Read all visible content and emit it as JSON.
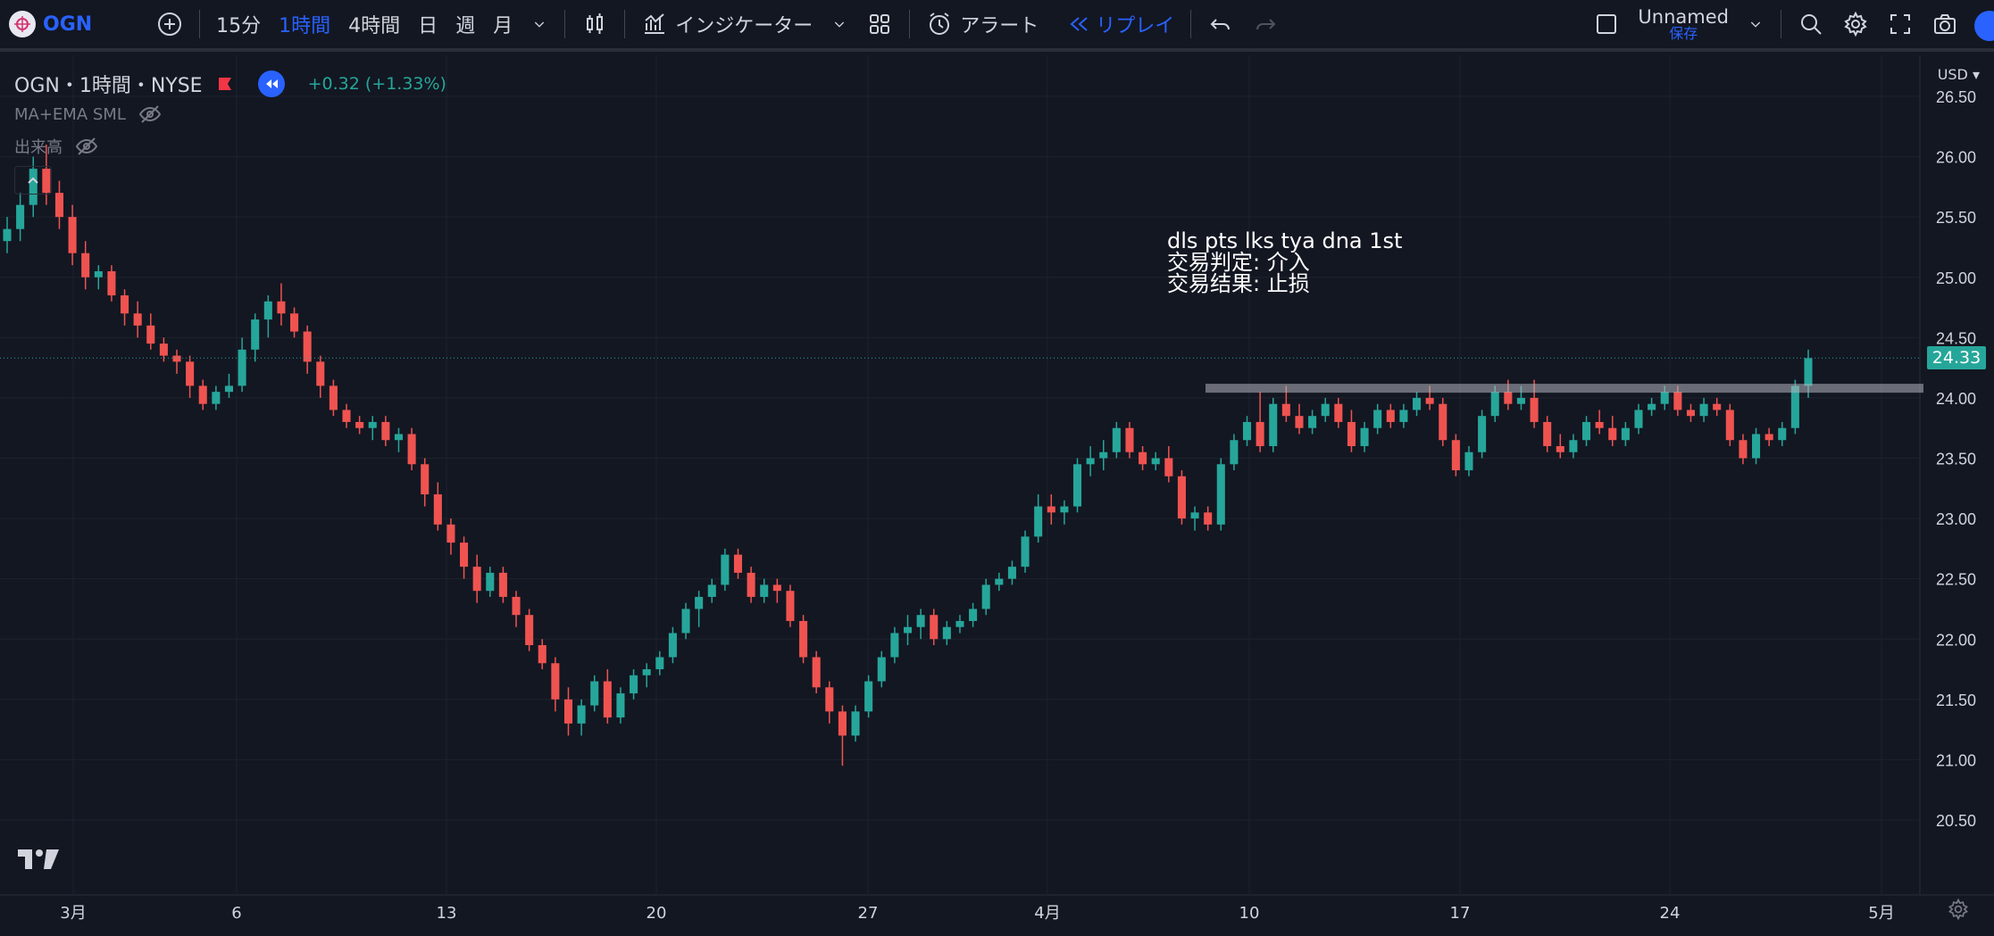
{
  "toolbar": {
    "symbol": "OGN",
    "intervals": [
      "15分",
      "1時間",
      "4時間",
      "日",
      "週",
      "月"
    ],
    "active_interval": "1時間",
    "indicators_label": "インジケーター",
    "alert_label": "アラート",
    "replay_label": "リプレイ",
    "layout_name": "Unnamed",
    "save_label": "保存"
  },
  "legend": {
    "title": "OGN・1時間・NYSE",
    "change": "+0.32 (+1.33%)",
    "indicator1": "MA+EMA SML",
    "indicator2": "出来高"
  },
  "annotation": {
    "line1": "dls pts lks tya dna 1st",
    "line2": "交易判定: 介入",
    "line3": "交易结果: 止损"
  },
  "price_axis": {
    "currency": "USD",
    "current_price": "24.33",
    "ticks": [
      "26.50",
      "26.00",
      "25.50",
      "25.00",
      "24.50",
      "24.00",
      "23.50",
      "23.00",
      "22.50",
      "22.00",
      "21.50",
      "21.00",
      "20.50"
    ]
  },
  "time_axis": {
    "ticks": [
      "3月",
      "6",
      "13",
      "20",
      "27",
      "4月",
      "10",
      "17",
      "24",
      "5月"
    ]
  },
  "colors": {
    "up": "#26a69a",
    "down": "#ef5350",
    "accent": "#2962ff",
    "background": "#131722"
  },
  "chart_data": {
    "type": "candlestick",
    "ylim": [
      20.5,
      26.5
    ],
    "resistance_level": 24.08,
    "ohlc": [
      [
        25.3,
        25.5,
        25.2,
        25.4
      ],
      [
        25.4,
        25.7,
        25.3,
        25.6
      ],
      [
        25.6,
        26.0,
        25.5,
        25.9
      ],
      [
        25.9,
        26.1,
        25.6,
        25.7
      ],
      [
        25.7,
        25.8,
        25.4,
        25.5
      ],
      [
        25.5,
        25.6,
        25.1,
        25.2
      ],
      [
        25.2,
        25.3,
        24.9,
        25.0
      ],
      [
        25.0,
        25.1,
        24.9,
        25.05
      ],
      [
        25.05,
        25.1,
        24.8,
        24.85
      ],
      [
        24.85,
        24.9,
        24.6,
        24.7
      ],
      [
        24.7,
        24.8,
        24.5,
        24.6
      ],
      [
        24.6,
        24.7,
        24.4,
        24.45
      ],
      [
        24.45,
        24.5,
        24.3,
        24.35
      ],
      [
        24.35,
        24.4,
        24.2,
        24.3
      ],
      [
        24.3,
        24.35,
        24.0,
        24.1
      ],
      [
        24.1,
        24.15,
        23.9,
        23.95
      ],
      [
        23.95,
        24.1,
        23.9,
        24.05
      ],
      [
        24.05,
        24.2,
        24.0,
        24.1
      ],
      [
        24.1,
        24.5,
        24.05,
        24.4
      ],
      [
        24.4,
        24.7,
        24.3,
        24.65
      ],
      [
        24.65,
        24.85,
        24.5,
        24.8
      ],
      [
        24.8,
        24.95,
        24.6,
        24.7
      ],
      [
        24.7,
        24.75,
        24.5,
        24.55
      ],
      [
        24.55,
        24.6,
        24.2,
        24.3
      ],
      [
        24.3,
        24.35,
        24.0,
        24.1
      ],
      [
        24.1,
        24.15,
        23.85,
        23.9
      ],
      [
        23.9,
        23.95,
        23.75,
        23.8
      ],
      [
        23.8,
        23.85,
        23.7,
        23.75
      ],
      [
        23.75,
        23.85,
        23.65,
        23.8
      ],
      [
        23.8,
        23.85,
        23.6,
        23.65
      ],
      [
        23.65,
        23.75,
        23.55,
        23.7
      ],
      [
        23.7,
        23.75,
        23.4,
        23.45
      ],
      [
        23.45,
        23.5,
        23.1,
        23.2
      ],
      [
        23.2,
        23.3,
        22.9,
        22.95
      ],
      [
        22.95,
        23.0,
        22.7,
        22.8
      ],
      [
        22.8,
        22.85,
        22.5,
        22.6
      ],
      [
        22.6,
        22.7,
        22.3,
        22.4
      ],
      [
        22.4,
        22.6,
        22.35,
        22.55
      ],
      [
        22.55,
        22.6,
        22.3,
        22.35
      ],
      [
        22.35,
        22.4,
        22.1,
        22.2
      ],
      [
        22.2,
        22.25,
        21.9,
        21.95
      ],
      [
        21.95,
        22.0,
        21.75,
        21.8
      ],
      [
        21.8,
        21.85,
        21.4,
        21.5
      ],
      [
        21.5,
        21.6,
        21.2,
        21.3
      ],
      [
        21.3,
        21.5,
        21.2,
        21.45
      ],
      [
        21.45,
        21.7,
        21.4,
        21.65
      ],
      [
        21.65,
        21.75,
        21.3,
        21.35
      ],
      [
        21.35,
        21.6,
        21.3,
        21.55
      ],
      [
        21.55,
        21.75,
        21.5,
        21.7
      ],
      [
        21.7,
        21.8,
        21.6,
        21.75
      ],
      [
        21.75,
        21.9,
        21.7,
        21.85
      ],
      [
        21.85,
        22.1,
        21.8,
        22.05
      ],
      [
        22.05,
        22.3,
        22.0,
        22.25
      ],
      [
        22.25,
        22.4,
        22.1,
        22.35
      ],
      [
        22.35,
        22.5,
        22.3,
        22.45
      ],
      [
        22.45,
        22.75,
        22.4,
        22.7
      ],
      [
        22.7,
        22.75,
        22.5,
        22.55
      ],
      [
        22.55,
        22.6,
        22.3,
        22.35
      ],
      [
        22.35,
        22.5,
        22.3,
        22.45
      ],
      [
        22.45,
        22.5,
        22.3,
        22.4
      ],
      [
        22.4,
        22.45,
        22.1,
        22.15
      ],
      [
        22.15,
        22.2,
        21.8,
        21.85
      ],
      [
        21.85,
        21.9,
        21.55,
        21.6
      ],
      [
        21.6,
        21.65,
        21.3,
        21.4
      ],
      [
        21.4,
        21.45,
        20.95,
        21.2
      ],
      [
        21.2,
        21.45,
        21.15,
        21.4
      ],
      [
        21.4,
        21.7,
        21.35,
        21.65
      ],
      [
        21.65,
        21.9,
        21.6,
        21.85
      ],
      [
        21.85,
        22.1,
        21.8,
        22.05
      ],
      [
        22.05,
        22.2,
        21.95,
        22.1
      ],
      [
        22.1,
        22.25,
        22.0,
        22.2
      ],
      [
        22.2,
        22.25,
        21.95,
        22.0
      ],
      [
        22.0,
        22.15,
        21.95,
        22.1
      ],
      [
        22.1,
        22.2,
        22.05,
        22.15
      ],
      [
        22.15,
        22.3,
        22.1,
        22.25
      ],
      [
        22.25,
        22.5,
        22.2,
        22.45
      ],
      [
        22.45,
        22.55,
        22.4,
        22.5
      ],
      [
        22.5,
        22.65,
        22.45,
        22.6
      ],
      [
        22.6,
        22.9,
        22.55,
        22.85
      ],
      [
        22.85,
        23.2,
        22.8,
        23.1
      ],
      [
        23.1,
        23.2,
        22.95,
        23.05
      ],
      [
        23.05,
        23.15,
        22.95,
        23.1
      ],
      [
        23.1,
        23.5,
        23.05,
        23.45
      ],
      [
        23.45,
        23.6,
        23.35,
        23.5
      ],
      [
        23.5,
        23.65,
        23.4,
        23.55
      ],
      [
        23.55,
        23.8,
        23.5,
        23.75
      ],
      [
        23.75,
        23.8,
        23.5,
        23.55
      ],
      [
        23.55,
        23.6,
        23.4,
        23.45
      ],
      [
        23.45,
        23.55,
        23.4,
        23.5
      ],
      [
        23.5,
        23.6,
        23.3,
        23.35
      ],
      [
        23.35,
        23.4,
        22.95,
        23.0
      ],
      [
        23.0,
        23.1,
        22.9,
        23.05
      ],
      [
        23.05,
        23.1,
        22.9,
        22.95
      ],
      [
        22.95,
        23.5,
        22.9,
        23.45
      ],
      [
        23.45,
        23.7,
        23.4,
        23.65
      ],
      [
        23.65,
        23.85,
        23.6,
        23.8
      ],
      [
        23.8,
        24.05,
        23.55,
        23.6
      ],
      [
        23.6,
        24.0,
        23.55,
        23.95
      ],
      [
        23.95,
        24.1,
        23.8,
        23.85
      ],
      [
        23.85,
        23.95,
        23.7,
        23.75
      ],
      [
        23.75,
        23.9,
        23.7,
        23.85
      ],
      [
        23.85,
        24.0,
        23.8,
        23.95
      ],
      [
        23.95,
        24.0,
        23.75,
        23.8
      ],
      [
        23.8,
        23.9,
        23.55,
        23.6
      ],
      [
        23.6,
        23.8,
        23.55,
        23.75
      ],
      [
        23.75,
        23.95,
        23.7,
        23.9
      ],
      [
        23.9,
        23.95,
        23.75,
        23.8
      ],
      [
        23.8,
        23.95,
        23.75,
        23.9
      ],
      [
        23.9,
        24.05,
        23.85,
        24.0
      ],
      [
        24.0,
        24.1,
        23.9,
        23.95
      ],
      [
        23.95,
        24.0,
        23.6,
        23.65
      ],
      [
        23.65,
        23.7,
        23.35,
        23.4
      ],
      [
        23.4,
        23.6,
        23.35,
        23.55
      ],
      [
        23.55,
        23.9,
        23.5,
        23.85
      ],
      [
        23.85,
        24.1,
        23.8,
        24.05
      ],
      [
        24.05,
        24.15,
        23.9,
        23.95
      ],
      [
        23.95,
        24.1,
        23.9,
        24.0
      ],
      [
        24.0,
        24.15,
        23.75,
        23.8
      ],
      [
        23.8,
        23.85,
        23.55,
        23.6
      ],
      [
        23.6,
        23.7,
        23.5,
        23.55
      ],
      [
        23.55,
        23.7,
        23.5,
        23.65
      ],
      [
        23.65,
        23.85,
        23.6,
        23.8
      ],
      [
        23.8,
        23.9,
        23.7,
        23.75
      ],
      [
        23.75,
        23.85,
        23.6,
        23.65
      ],
      [
        23.65,
        23.8,
        23.6,
        23.75
      ],
      [
        23.75,
        23.95,
        23.7,
        23.9
      ],
      [
        23.9,
        24.0,
        23.85,
        23.95
      ],
      [
        23.95,
        24.1,
        23.9,
        24.05
      ],
      [
        24.05,
        24.1,
        23.85,
        23.9
      ],
      [
        23.9,
        23.95,
        23.8,
        23.85
      ],
      [
        23.85,
        24.0,
        23.8,
        23.95
      ],
      [
        23.95,
        24.0,
        23.85,
        23.9
      ],
      [
        23.9,
        23.95,
        23.6,
        23.65
      ],
      [
        23.65,
        23.7,
        23.45,
        23.5
      ],
      [
        23.5,
        23.75,
        23.45,
        23.7
      ],
      [
        23.7,
        23.75,
        23.6,
        23.65
      ],
      [
        23.65,
        23.8,
        23.6,
        23.75
      ],
      [
        23.75,
        24.15,
        23.7,
        24.1
      ],
      [
        24.1,
        24.4,
        24.0,
        24.33
      ]
    ]
  }
}
